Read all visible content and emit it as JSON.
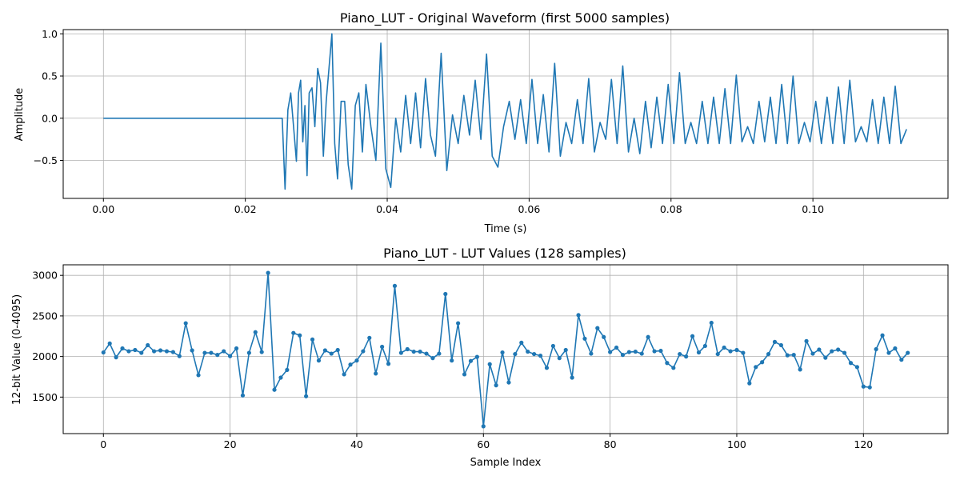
{
  "colors": {
    "series": "#1f77b4",
    "grid": "#b0b0b0"
  },
  "chart_data": [
    {
      "type": "line",
      "title": "Piano_LUT - Original Waveform (first 5000 samples)",
      "xlabel": "Time (s)",
      "ylabel": "Amplitude",
      "xlim": [
        -0.00567,
        0.11904
      ],
      "ylim": [
        -0.95,
        1.05
      ],
      "xticks": [
        0,
        0.02,
        0.04,
        0.06,
        0.08,
        0.1
      ],
      "xtick_labels": [
        "0.00",
        "0.02",
        "0.04",
        "0.06",
        "0.08",
        "0.10"
      ],
      "yticks": [
        -0.5,
        0,
        0.5,
        1.0
      ],
      "ytick_labels": [
        "−0.5",
        "0.0",
        "0.5",
        "1.0"
      ],
      "grid": true,
      "series": [
        {
          "x": [
            0,
            0.0252,
            0.0256,
            0.026,
            0.0264,
            0.0268,
            0.0272,
            0.0275,
            0.0278,
            0.0281,
            0.0284,
            0.0287,
            0.029,
            0.0294,
            0.0298,
            0.0302,
            0.0306,
            0.031,
            0.0314,
            0.0318,
            0.0322,
            0.0326,
            0.033,
            0.0335,
            0.034,
            0.0345,
            0.035,
            0.0355,
            0.036,
            0.0365,
            0.037,
            0.0377,
            0.0384,
            0.0391,
            0.0398,
            0.0405,
            0.0412,
            0.0419,
            0.0426,
            0.0433,
            0.044,
            0.0447,
            0.0454,
            0.0461,
            0.0468,
            0.0476,
            0.0484,
            0.0492,
            0.05,
            0.0508,
            0.0516,
            0.0524,
            0.0532,
            0.054,
            0.0548,
            0.0556,
            0.0564,
            0.0572,
            0.058,
            0.0588,
            0.0596,
            0.0604,
            0.0612,
            0.062,
            0.0628,
            0.0636,
            0.0644,
            0.0652,
            0.066,
            0.0668,
            0.0676,
            0.0684,
            0.0692,
            0.07,
            0.0708,
            0.0716,
            0.0724,
            0.0732,
            0.074,
            0.0748,
            0.0756,
            0.0764,
            0.0772,
            0.078,
            0.0788,
            0.0796,
            0.0804,
            0.0812,
            0.082,
            0.0828,
            0.0836,
            0.0844,
            0.0852,
            0.086,
            0.0868,
            0.0876,
            0.0884,
            0.0892,
            0.09,
            0.0908,
            0.0916,
            0.0924,
            0.0932,
            0.094,
            0.0948,
            0.0956,
            0.0964,
            0.0972,
            0.098,
            0.0988,
            0.0996,
            0.1004,
            0.1012,
            0.102,
            0.1028,
            0.1036,
            0.1044,
            0.1052,
            0.106,
            0.1068,
            0.1076,
            0.1084,
            0.1092,
            0.11,
            0.1108,
            0.1116,
            0.1124,
            0.1132
          ],
          "y": [
            0,
            0,
            -0.84,
            0.1,
            0.3,
            -0.1,
            -0.51,
            0.3,
            0.45,
            -0.28,
            0.15,
            -0.68,
            0.3,
            0.36,
            -0.1,
            0.59,
            0.42,
            -0.45,
            0.2,
            0.6,
            1.0,
            -0.3,
            -0.72,
            0.2,
            0.2,
            -0.55,
            -0.84,
            0.15,
            0.3,
            -0.4,
            0.4,
            -0.1,
            -0.5,
            0.89,
            -0.6,
            -0.82,
            0.0,
            -0.4,
            0.27,
            -0.3,
            0.3,
            -0.35,
            0.47,
            -0.2,
            -0.45,
            0.77,
            -0.62,
            0.04,
            -0.3,
            0.27,
            -0.2,
            0.45,
            -0.25,
            0.76,
            -0.45,
            -0.58,
            -0.1,
            0.2,
            -0.25,
            0.22,
            -0.3,
            0.46,
            -0.3,
            0.28,
            -0.4,
            0.65,
            -0.45,
            -0.05,
            -0.3,
            0.22,
            -0.3,
            0.47,
            -0.4,
            -0.05,
            -0.25,
            0.46,
            -0.3,
            0.62,
            -0.4,
            0.0,
            -0.42,
            0.2,
            -0.35,
            0.25,
            -0.3,
            0.4,
            -0.3,
            0.54,
            -0.3,
            -0.05,
            -0.3,
            0.2,
            -0.3,
            0.25,
            -0.3,
            0.35,
            -0.3,
            0.51,
            -0.28,
            -0.1,
            -0.3,
            0.2,
            -0.28,
            0.25,
            -0.3,
            0.4,
            -0.3,
            0.5,
            -0.3,
            -0.05,
            -0.28,
            0.2,
            -0.3,
            0.25,
            -0.3,
            0.37,
            -0.3,
            0.45,
            -0.28,
            -0.1,
            -0.28,
            0.22,
            -0.3,
            0.25,
            -0.3,
            0.38,
            -0.3,
            -0.13
          ]
        }
      ]
    },
    {
      "type": "line",
      "title": "Piano_LUT - LUT Values (128 samples)",
      "xlabel": "Sample Index",
      "ylabel": "12-bit Value (0-4095)",
      "xlim": [
        -6.35,
        133.35
      ],
      "ylim": [
        1050,
        3130
      ],
      "xticks": [
        0,
        20,
        40,
        60,
        80,
        100,
        120
      ],
      "xtick_labels": [
        "0",
        "20",
        "40",
        "60",
        "80",
        "100",
        "120"
      ],
      "yticks": [
        1500,
        2000,
        2500,
        3000
      ],
      "ytick_labels": [
        "1500",
        "2000",
        "2500",
        "3000"
      ],
      "grid": true,
      "markers": true,
      "series": [
        {
          "x": [
            0,
            1,
            2,
            3,
            4,
            5,
            6,
            7,
            8,
            9,
            10,
            11,
            12,
            13,
            14,
            15,
            16,
            17,
            18,
            19,
            20,
            21,
            22,
            23,
            24,
            25,
            26,
            27,
            28,
            29,
            30,
            31,
            32,
            33,
            34,
            35,
            36,
            37,
            38,
            39,
            40,
            41,
            42,
            43,
            44,
            45,
            46,
            47,
            48,
            49,
            50,
            51,
            52,
            53,
            54,
            55,
            56,
            57,
            58,
            59,
            60,
            61,
            62,
            63,
            64,
            65,
            66,
            67,
            68,
            69,
            70,
            71,
            72,
            73,
            74,
            75,
            76,
            77,
            78,
            79,
            80,
            81,
            82,
            83,
            84,
            85,
            86,
            87,
            88,
            89,
            90,
            91,
            92,
            93,
            94,
            95,
            96,
            97,
            98,
            99,
            100,
            101,
            102,
            103,
            104,
            105,
            106,
            107,
            108,
            109,
            110,
            111,
            112,
            113,
            114,
            115,
            116,
            117,
            118,
            119,
            120,
            121,
            122,
            123,
            124,
            125,
            126,
            127
          ],
          "y": [
            2050,
            2160,
            1990,
            2100,
            2065,
            2080,
            2045,
            2140,
            2065,
            2075,
            2065,
            2055,
            2005,
            2410,
            2075,
            1770,
            2045,
            2045,
            2020,
            2065,
            2005,
            2100,
            1520,
            2045,
            2300,
            2055,
            3030,
            1590,
            1740,
            1835,
            2290,
            2260,
            1510,
            2210,
            1950,
            2075,
            2035,
            2080,
            1780,
            1900,
            1950,
            2065,
            2230,
            1790,
            2120,
            1910,
            2870,
            2045,
            2090,
            2060,
            2060,
            2035,
            1980,
            2035,
            2770,
            1950,
            2410,
            1780,
            1945,
            1995,
            1140,
            1905,
            1645,
            2050,
            1680,
            2030,
            2170,
            2060,
            2030,
            2010,
            1860,
            2130,
            1980,
            2080,
            1740,
            2510,
            2220,
            2035,
            2350,
            2240,
            2055,
            2110,
            2020,
            2055,
            2060,
            2035,
            2240,
            2065,
            2070,
            1920,
            1860,
            2030,
            2000,
            2250,
            2050,
            2130,
            2415,
            2030,
            2110,
            2065,
            2080,
            2045,
            1670,
            1870,
            1930,
            2030,
            2180,
            2140,
            2015,
            2020,
            1840,
            2190,
            2035,
            2085,
            1985,
            2065,
            2085,
            2045,
            1920,
            1870,
            1630,
            1620,
            2090,
            2260,
            2045,
            2100,
            1960,
            2045
          ]
        }
      ]
    }
  ]
}
